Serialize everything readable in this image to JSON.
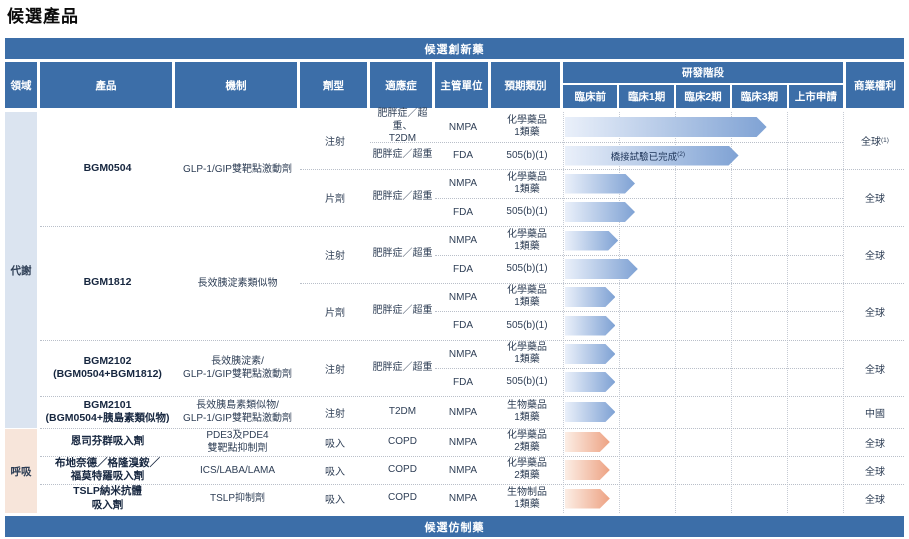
{
  "title": "候選產品",
  "colors": {
    "header": "#3c6ea8",
    "text": "#2e3e55",
    "dotted": "#b9bfc9",
    "metab_bg": "#dbe4f0",
    "resp_bg": "#f7e5da",
    "bar_blue_from": "#eaf0fa",
    "bar_blue_to": "#7fa2d4",
    "bar_orange_from": "#fceee5",
    "bar_orange_to": "#eda283"
  },
  "table": {
    "top_banner": "候選創新藥",
    "bottom_banner": "候選仿制藥",
    "columns": {
      "field": "領域",
      "product": "產品",
      "mechanism": "機制",
      "form": "劑型",
      "indication": "適應症",
      "authority": "主管單位",
      "category": "預期類別",
      "stage": "研發階段",
      "rights": "商業權利"
    },
    "stage_columns": [
      "臨床前",
      "臨床1期",
      "臨床2期",
      "臨床3期",
      "上市申請"
    ]
  },
  "fields": [
    {
      "label": "代謝"
    },
    {
      "label": "呼吸"
    }
  ],
  "products": [
    {
      "name": "BGM0504",
      "mechanism": "GLP-1/GIP雙靶點激動劑",
      "groups": [
        {
          "form": "注射",
          "rights": "全球",
          "rights_sup": "(1)",
          "rows": [
            {
              "indication": "肥胖症／超重、\nT2DM",
              "authority": "NMPA",
              "category": "化學藥品\n1類藥",
              "bar_pct": 72
            },
            {
              "indication": "肥胖症／超重",
              "authority": "FDA",
              "category": "505(b)(1)",
              "bar_pct": 62,
              "bar_label": "橋接試驗已完成",
              "bar_label_sup": "(2)"
            }
          ]
        },
        {
          "form": "片劑",
          "indication": "肥胖症／超重",
          "rights": "全球",
          "rows": [
            {
              "authority": "NMPA",
              "category": "化學藥品\n1類藥",
              "bar_pct": 25
            },
            {
              "authority": "FDA",
              "category": "505(b)(1)",
              "bar_pct": 25
            }
          ]
        }
      ]
    },
    {
      "name": "BGM1812",
      "mechanism": "長效胰淀素類似物",
      "groups": [
        {
          "form": "注射",
          "indication": "肥胖症／超重",
          "rights": "全球",
          "rows": [
            {
              "authority": "NMPA",
              "category": "化學藥品\n1類藥",
              "bar_pct": 19
            },
            {
              "authority": "FDA",
              "category": "505(b)(1)",
              "bar_pct": 26
            }
          ]
        },
        {
          "form": "片劑",
          "indication": "肥胖症／超重",
          "rights": "全球",
          "rows": [
            {
              "authority": "NMPA",
              "category": "化學藥品\n1類藥",
              "bar_pct": 18
            },
            {
              "authority": "FDA",
              "category": "505(b)(1)",
              "bar_pct": 18
            }
          ]
        }
      ]
    },
    {
      "name": "BGM2102\n(BGM0504+BGM1812)",
      "mechanism": "長效胰淀素/\nGLP-1/GIP雙靶點激動劑",
      "groups": [
        {
          "form": "注射",
          "indication": "肥胖症／超重",
          "rights": "全球",
          "rows": [
            {
              "authority": "NMPA",
              "category": "化學藥品\n1類藥",
              "bar_pct": 18
            },
            {
              "authority": "FDA",
              "category": "505(b)(1)",
              "bar_pct": 18
            }
          ]
        }
      ]
    },
    {
      "name": "BGM2101\n(BGM0504+胰島素類似物)",
      "mechanism": "長效胰島素類似物/\nGLP-1/GIP雙靶點激動劑",
      "groups": [
        {
          "form": "注射",
          "indication": "T2DM",
          "rights": "中國",
          "rows": [
            {
              "authority": "NMPA",
              "category": "生物藥品\n1類藥",
              "bar_pct": 18
            }
          ]
        }
      ]
    },
    {
      "name": "恩司芬群吸入劑",
      "mechanism": "PDE3及PDE4\n雙靶點抑制劑",
      "groups": [
        {
          "form": "吸入",
          "indication": "COPD",
          "rights": "全球",
          "rows": [
            {
              "authority": "NMPA",
              "category": "化學藥品\n2類藥",
              "bar_pct": 16,
              "color": "orange"
            }
          ]
        }
      ]
    },
    {
      "name": "布地奈德／格隆溴銨／\n福莫特羅吸入劑",
      "mechanism": "ICS/LABA/LAMA",
      "groups": [
        {
          "form": "吸入",
          "indication": "COPD",
          "rights": "全球",
          "rows": [
            {
              "authority": "NMPA",
              "category": "化學藥品\n2類藥",
              "bar_pct": 16,
              "color": "orange"
            }
          ]
        }
      ]
    },
    {
      "name": "TSLP納米抗體\n吸入劑",
      "mechanism": "TSLP抑制劑",
      "groups": [
        {
          "form": "吸入",
          "indication": "COPD",
          "rights": "全球",
          "rows": [
            {
              "authority": "NMPA",
              "category": "生物制品\n1類藥",
              "bar_pct": 16,
              "color": "orange"
            }
          ]
        }
      ]
    }
  ]
}
